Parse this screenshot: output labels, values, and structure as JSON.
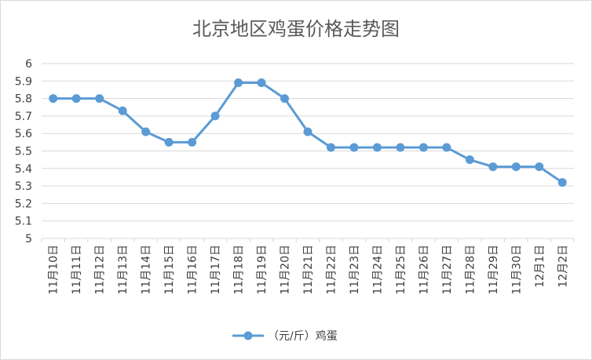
{
  "chart_data": {
    "type": "line",
    "title": "北京地区鸡蛋价格走势图",
    "xlabel": "",
    "ylabel": "",
    "categories": [
      "11月10日",
      "11月11日",
      "11月12日",
      "11月13日",
      "11月14日",
      "11月15日",
      "11月16日",
      "11月17日",
      "11月18日",
      "11月19日",
      "11月20日",
      "11月21日",
      "11月22日",
      "11月23日",
      "11月24日",
      "11月25日",
      "11月26日",
      "11月27日",
      "11月28日",
      "11月29日",
      "11月30日",
      "12月1日",
      "12月2日"
    ],
    "series": [
      {
        "name": "（元/斤）鸡蛋",
        "values": [
          5.8,
          5.8,
          5.8,
          5.73,
          5.61,
          5.55,
          5.55,
          5.7,
          5.89,
          5.89,
          5.8,
          5.61,
          5.52,
          5.52,
          5.52,
          5.52,
          5.52,
          5.52,
          5.45,
          5.41,
          5.41,
          5.41,
          5.32
        ],
        "color": "#5b9bd5"
      }
    ],
    "ylim": [
      5,
      6
    ],
    "yticks": [
      "5",
      "5.1",
      "5.2",
      "5.3",
      "5.4",
      "5.5",
      "5.6",
      "5.7",
      "5.8",
      "5.9",
      "6"
    ],
    "grid": true,
    "legend_position": "bottom",
    "gridline_color": "#d9d9d9"
  }
}
